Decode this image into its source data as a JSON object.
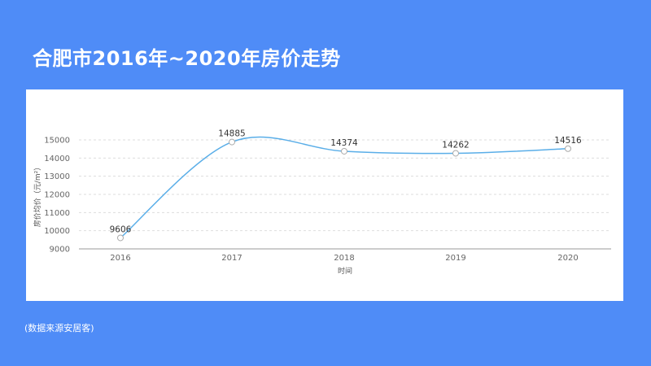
{
  "page": {
    "title": "合肥市2016年~2020年房价走势",
    "source_note": "(数据来源安居客)"
  },
  "colors": {
    "background": "#4f8cf7",
    "card": "#ffffff",
    "line": "#5aaee8",
    "grid": "#dddddd",
    "axis": "#bbbbbb"
  },
  "chart_data": {
    "type": "line",
    "smooth": true,
    "categories": [
      "2016",
      "2017",
      "2018",
      "2019",
      "2020"
    ],
    "series": [
      {
        "values": [
          9606,
          14885,
          14374,
          14262,
          14516
        ]
      }
    ],
    "data_labels": [
      "9606",
      "14885",
      "14374",
      "14262",
      "14516"
    ],
    "xlabel": "时间",
    "ylabel": "房价均价（元/m²）",
    "ylim": [
      9000,
      15000
    ],
    "yticks": [
      9000,
      10000,
      11000,
      12000,
      13000,
      14000,
      15000
    ],
    "grid": true,
    "legend": "none"
  }
}
